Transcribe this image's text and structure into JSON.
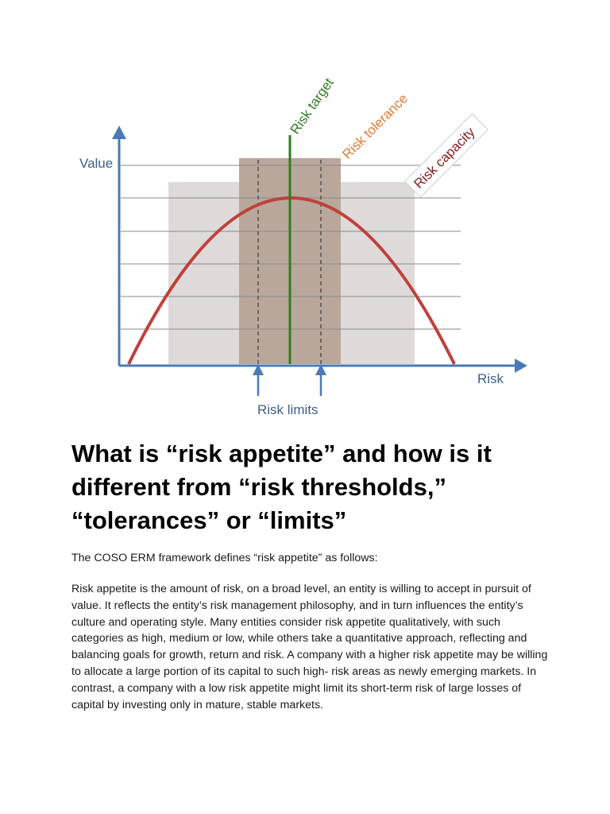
{
  "diagram": {
    "y_axis_label": "Value",
    "x_axis_label": "Risk",
    "risk_target_label": "Risk target",
    "risk_tolerance_label": "Risk tolerance",
    "risk_capacity_label": "Risk capacity",
    "risk_limits_label": "Risk limits",
    "colors": {
      "axis": "#4a7ab5",
      "curve": "#c0403a",
      "risk_target": "#2e7d1f",
      "risk_tolerance": "#e07a35",
      "risk_capacity": "#8b1a1a",
      "capacity_band": "#dedada",
      "tolerance_band": "#b9a79c"
    }
  },
  "article": {
    "heading": "What is “risk appetite” and how is it different from “risk thresholds,” “tolerances” or “limits”",
    "intro": "The COSO ERM framework defines “risk appetite” as follows:",
    "body": "Risk appetite is the amount of risk, on a broad level, an entity is willing to accept in pursuit of value. It reflects the entity’s risk management philosophy, and in turn influences the entity’s culture and operating style. Many entities consider risk appetite qualitatively, with such categories as high, medium or low, while others take a quantitative approach, reflecting and balancing goals for growth, return and risk. A company with a higher risk appetite may be willing to allocate a large portion of its capital to such high- risk areas as newly emerging markets. In contrast, a company with a low risk appetite might limit its short-term risk of large losses of capital by investing only in mature, stable markets."
  }
}
